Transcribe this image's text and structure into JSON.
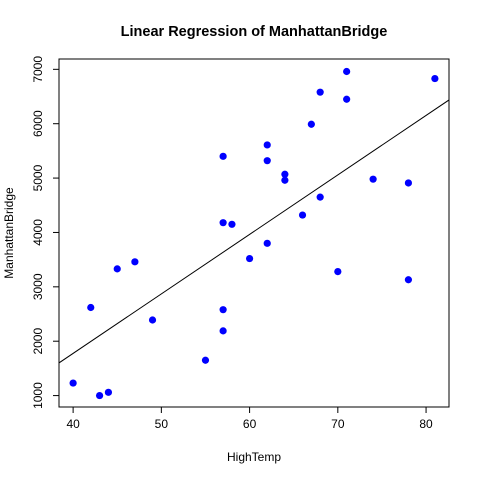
{
  "chart_data": {
    "type": "scatter",
    "title": "Linear Regression of ManhattanBridge",
    "xlabel": "HighTemp",
    "ylabel": "ManhattanBridge",
    "xlim": [
      38.4,
      82.6
    ],
    "ylim": [
      790,
      7190
    ],
    "xticks": [
      40,
      50,
      60,
      70,
      80
    ],
    "yticks": [
      1000,
      2000,
      3000,
      4000,
      5000,
      6000,
      7000
    ],
    "grid": false,
    "point_color": "#0000ff",
    "line_color": "#000000",
    "points": [
      {
        "x": 40,
        "y": 1230
      },
      {
        "x": 42,
        "y": 2620
      },
      {
        "x": 43,
        "y": 1000
      },
      {
        "x": 44,
        "y": 1060
      },
      {
        "x": 45,
        "y": 3330
      },
      {
        "x": 47,
        "y": 3460
      },
      {
        "x": 49,
        "y": 2390
      },
      {
        "x": 55,
        "y": 1650
      },
      {
        "x": 57,
        "y": 5400
      },
      {
        "x": 57,
        "y": 4180
      },
      {
        "x": 57,
        "y": 2580
      },
      {
        "x": 57,
        "y": 2190
      },
      {
        "x": 58,
        "y": 4150
      },
      {
        "x": 60,
        "y": 3520
      },
      {
        "x": 62,
        "y": 5610
      },
      {
        "x": 62,
        "y": 5320
      },
      {
        "x": 62,
        "y": 3800
      },
      {
        "x": 64,
        "y": 5070
      },
      {
        "x": 64,
        "y": 4960
      },
      {
        "x": 66,
        "y": 4320
      },
      {
        "x": 67,
        "y": 5990
      },
      {
        "x": 68,
        "y": 6580
      },
      {
        "x": 68,
        "y": 4650
      },
      {
        "x": 70,
        "y": 3280
      },
      {
        "x": 71,
        "y": 6960
      },
      {
        "x": 71,
        "y": 6450
      },
      {
        "x": 74,
        "y": 4980
      },
      {
        "x": 78,
        "y": 4910
      },
      {
        "x": 78,
        "y": 3130
      },
      {
        "x": 81,
        "y": 6830
      }
    ],
    "regression_line": {
      "slope": 109.4,
      "intercept": -2600
    }
  }
}
